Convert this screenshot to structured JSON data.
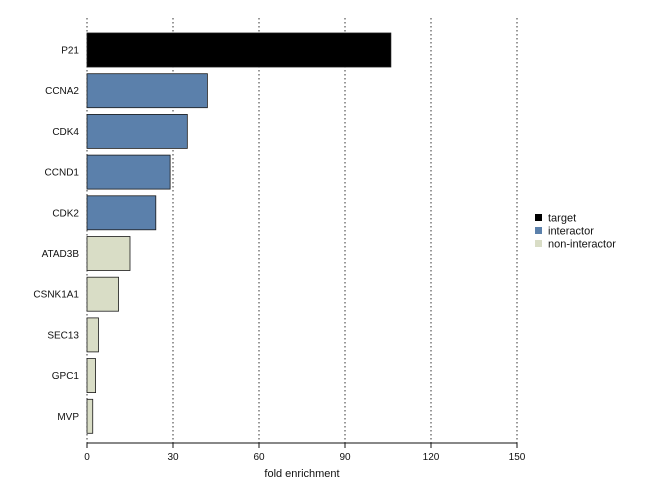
{
  "chart_data": {
    "type": "bar",
    "orientation": "horizontal",
    "xlabel": "fold enrichment",
    "xlim": [
      0,
      150
    ],
    "xticks": [
      0,
      30,
      60,
      90,
      120,
      150
    ],
    "grid": "vertical dotted",
    "legend_position": "right",
    "legend": [
      {
        "key": "target",
        "label": "target",
        "color": "#000000"
      },
      {
        "key": "interactor",
        "label": "interactor",
        "color": "#5b80ab"
      },
      {
        "key": "non-interactor",
        "label": "non-interactor",
        "color": "#d9ddc6"
      }
    ],
    "categories": [
      "P21",
      "CCNA2",
      "CDK4",
      "CCND1",
      "CDK2",
      "ATAD3B",
      "CSNK1A1",
      "SEC13",
      "GPC1",
      "MVP"
    ],
    "values": [
      106,
      42,
      35,
      29,
      24,
      15,
      11,
      4,
      3,
      2
    ],
    "groups": [
      "target",
      "interactor",
      "interactor",
      "interactor",
      "interactor",
      "non-interactor",
      "non-interactor",
      "non-interactor",
      "non-interactor",
      "non-interactor"
    ]
  }
}
